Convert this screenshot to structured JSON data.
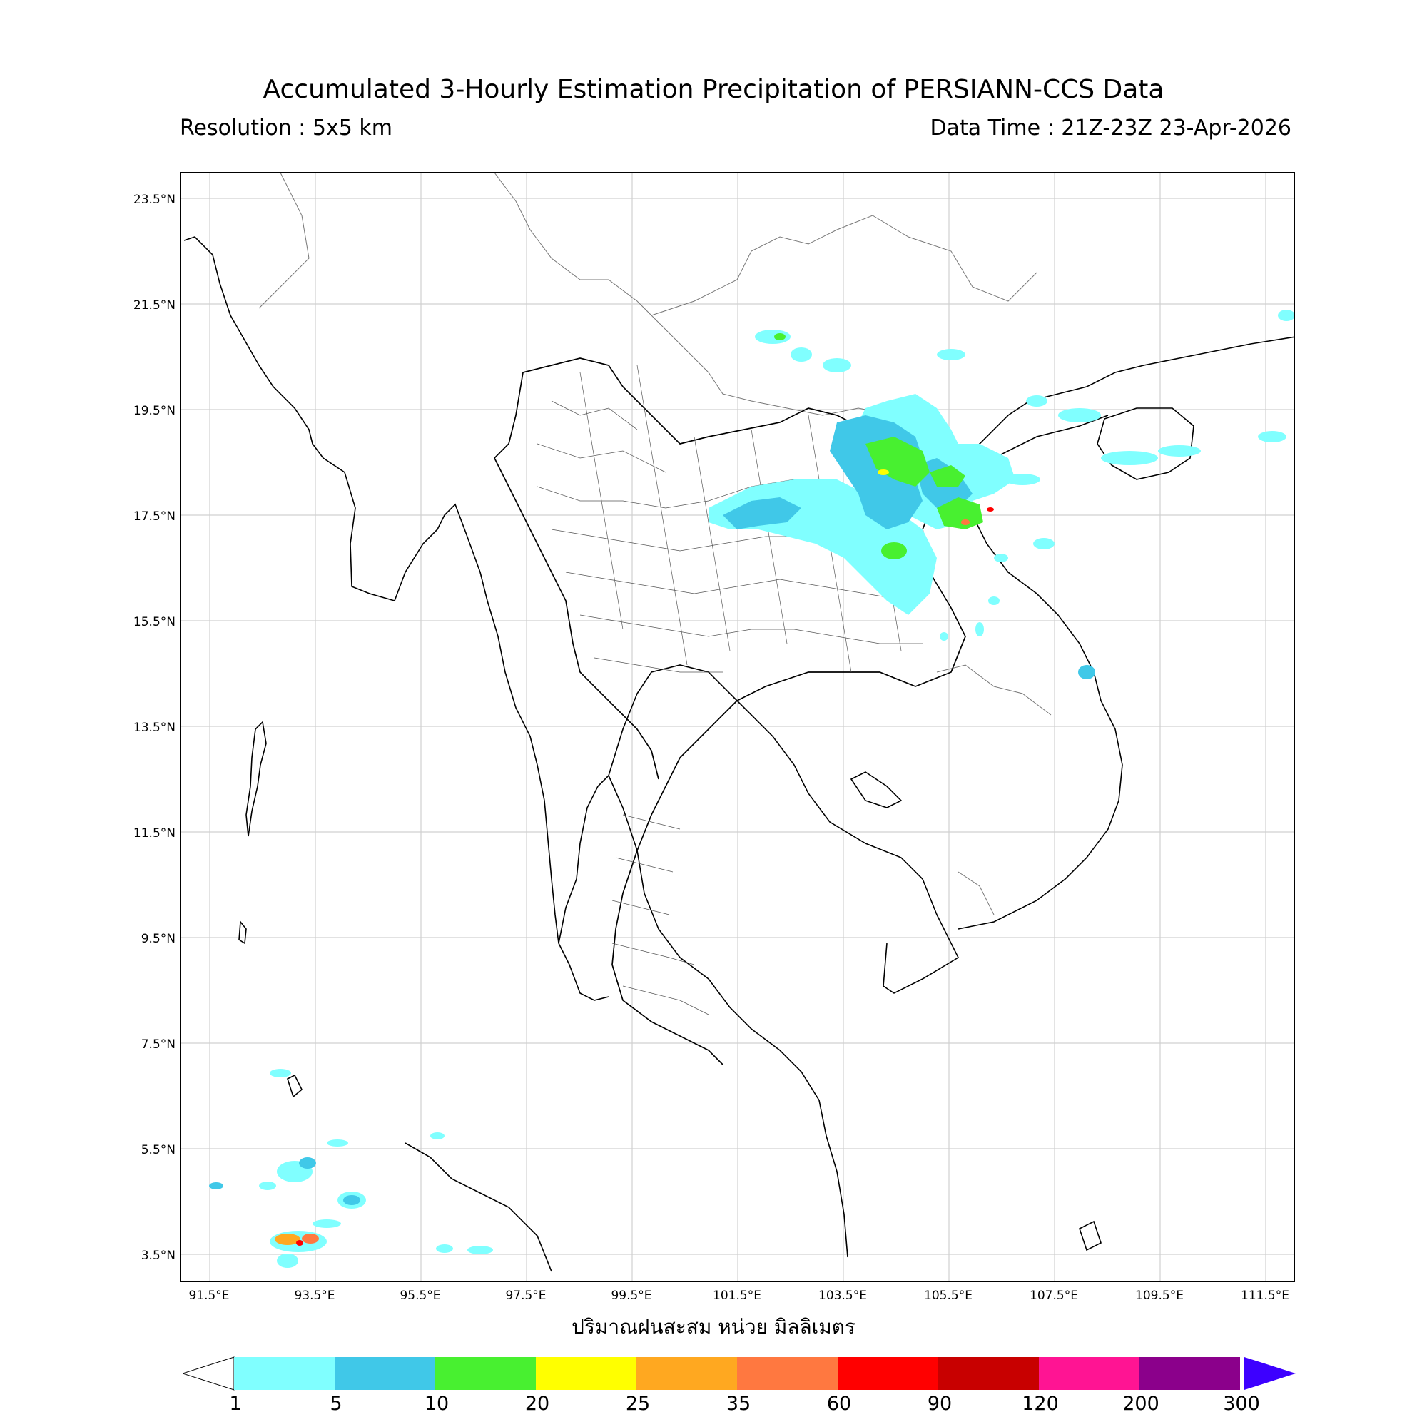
{
  "title": "Accumulated 3-Hourly Estimation Precipitation of PERSIANN-CCS Data",
  "resolution_text": "Resolution : 5x5 km",
  "data_time_text": "Data Time : 21Z-23Z 23-Apr-2026",
  "xlabel": "ปริมาณฝนสะสม หน่วย มิลลิเมตร",
  "lat_ticks": [
    "23.5°N",
    "21.5°N",
    "19.5°N",
    "17.5°N",
    "15.5°N",
    "13.5°N",
    "11.5°N",
    "9.5°N",
    "7.5°N",
    "5.5°N",
    "3.5°N"
  ],
  "lon_ticks": [
    "91.5°E",
    "93.5°E",
    "95.5°E",
    "97.5°E",
    "99.5°E",
    "101.5°E",
    "103.5°E",
    "105.5°E",
    "107.5°E",
    "109.5°E",
    "111.5°E"
  ],
  "colorbar": {
    "labels": [
      "1",
      "5",
      "10",
      "20",
      "25",
      "35",
      "60",
      "90",
      "120",
      "200",
      "300"
    ],
    "colors": [
      "#80ffff",
      "#40c8e8",
      "#48f030",
      "#ffff00",
      "#ffa820",
      "#ff7840",
      "#ff0000",
      "#c80000",
      "#ff1493",
      "#8b008b",
      "#3d00ff"
    ]
  }
}
